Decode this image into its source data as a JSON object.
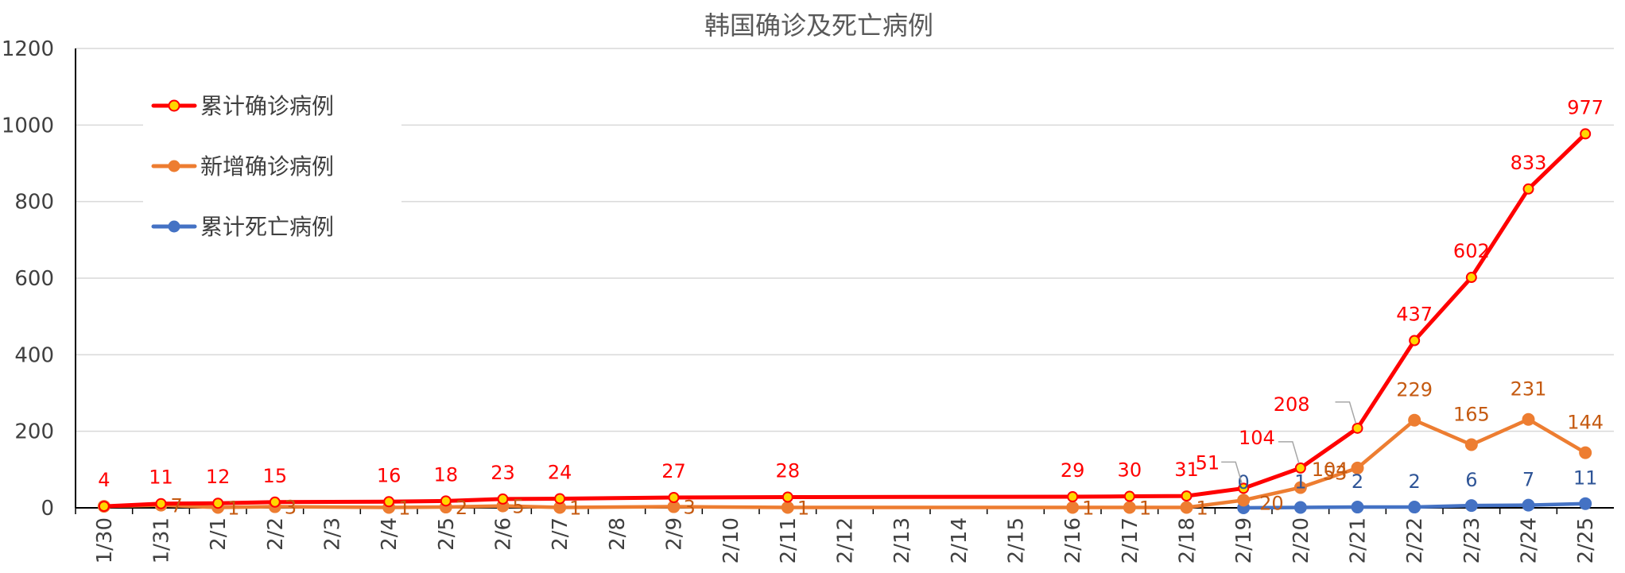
{
  "chart_data": {
    "type": "line",
    "title": "韩国确诊及死亡病例",
    "xlabel": "",
    "ylabel": "",
    "ylim": [
      0,
      1200
    ],
    "yticks": [
      0,
      200,
      400,
      600,
      800,
      1000,
      1200
    ],
    "grid": true,
    "legend_position": "top-left",
    "categories": [
      "1/30",
      "1/31",
      "2/1",
      "2/2",
      "2/3",
      "2/4",
      "2/5",
      "2/6",
      "2/7",
      "2/8",
      "2/9",
      "2/10",
      "2/11",
      "2/12",
      "2/13",
      "2/14",
      "2/15",
      "2/16",
      "2/17",
      "2/18",
      "2/19",
      "2/20",
      "2/21",
      "2/22",
      "2/23",
      "2/24",
      "2/25"
    ],
    "series": [
      {
        "name": "累计确诊病例",
        "color": "#ff0000",
        "marker_color": "#ffd700",
        "values": [
          4,
          11,
          12,
          15,
          null,
          16,
          18,
          23,
          24,
          null,
          27,
          null,
          28,
          null,
          null,
          null,
          null,
          29,
          30,
          31,
          51,
          104,
          208,
          437,
          602,
          833,
          977
        ],
        "labels": [
          "4",
          "11",
          "12",
          "15",
          null,
          "16",
          "18",
          "23",
          "24",
          null,
          "27",
          null,
          "28",
          null,
          null,
          null,
          null,
          "29",
          "30",
          "31",
          "51",
          "104",
          "208",
          "437",
          "602",
          "833",
          "977"
        ]
      },
      {
        "name": "新增确诊病例",
        "color": "#ed7d31",
        "label_color": "#c55a11",
        "values": [
          4,
          7,
          1,
          3,
          null,
          1,
          2,
          5,
          1,
          null,
          3,
          null,
          1,
          null,
          null,
          null,
          null,
          1,
          1,
          1,
          20,
          53,
          104,
          229,
          165,
          231,
          144
        ],
        "labels": [
          null,
          "7",
          "1",
          "3",
          null,
          "1",
          "2",
          "5",
          "1",
          null,
          "3",
          null,
          "1",
          null,
          null,
          null,
          null,
          "1",
          "1",
          "1",
          "20",
          "53",
          "104",
          "229",
          "165",
          "231",
          "144"
        ]
      },
      {
        "name": "累计死亡病例",
        "color": "#4472c4",
        "label_color": "#2f5597",
        "values": [
          null,
          null,
          null,
          null,
          null,
          null,
          null,
          null,
          null,
          null,
          null,
          null,
          null,
          null,
          null,
          null,
          null,
          null,
          null,
          null,
          0,
          1,
          2,
          2,
          6,
          7,
          11
        ],
        "labels": [
          null,
          null,
          null,
          null,
          null,
          null,
          null,
          null,
          null,
          null,
          null,
          null,
          null,
          null,
          null,
          null,
          null,
          null,
          null,
          null,
          "0",
          "1",
          "2",
          "2",
          "6",
          "7",
          "11"
        ]
      }
    ]
  }
}
